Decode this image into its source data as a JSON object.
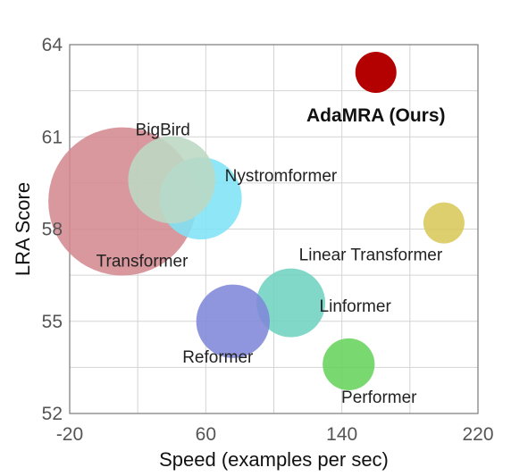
{
  "chart_data": {
    "type": "scatter",
    "variant": "bubble",
    "xlabel": "Speed (examples per sec)",
    "ylabel": "LRA Score",
    "xlim": [
      -20,
      220
    ],
    "ylim": [
      52,
      64
    ],
    "xticks": [
      -20,
      60,
      140,
      220
    ],
    "yticks": [
      52,
      55,
      58,
      61,
      64
    ],
    "grid": true,
    "points": [
      {
        "label": "AdaMRA (Ours)",
        "x": 160,
        "y": 63.1,
        "size": 1,
        "color": "#b30000",
        "highlight": true
      },
      {
        "label": "Transformer",
        "x": 11,
        "y": 58.9,
        "size": 13,
        "color": "#d48a8f"
      },
      {
        "label": "BigBird",
        "x": 40,
        "y": 59.6,
        "size": 4.5,
        "color": "#bcd8c4"
      },
      {
        "label": "Nystromformer",
        "x": 57,
        "y": 59.0,
        "size": 4,
        "color": "#7fe2f6"
      },
      {
        "label": "Linear Transformer",
        "x": 200,
        "y": 58.2,
        "size": 1,
        "color": "#d9c85a"
      },
      {
        "label": "Linformer",
        "x": 110,
        "y": 55.6,
        "size": 2.8,
        "color": "#6fd3c1"
      },
      {
        "label": "Reformer",
        "x": 76,
        "y": 55.0,
        "size": 3.2,
        "color": "#7f87d8"
      },
      {
        "label": "Performer",
        "x": 144,
        "y": 53.6,
        "size": 1.6,
        "color": "#66d45c"
      }
    ]
  }
}
